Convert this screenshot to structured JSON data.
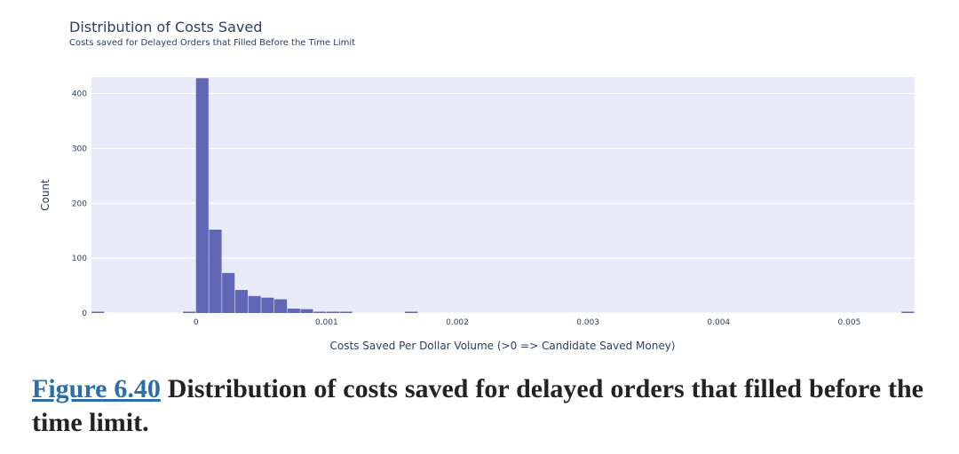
{
  "chart_data": {
    "type": "bar",
    "title": "Distribution of Costs Saved",
    "subtitle": "Costs saved for Delayed Orders that Filled Before the Time Limit",
    "xlabel": "Costs Saved Per Dollar Volume (>0 => Candidate Saved Money)",
    "ylabel": "Count",
    "xlim": [
      -0.0008,
      0.0055
    ],
    "ylim": [
      0,
      430
    ],
    "x_ticks": [
      {
        "value": 0,
        "label": "0"
      },
      {
        "value": 0.001,
        "label": "0.001"
      },
      {
        "value": 0.002,
        "label": "0.002"
      },
      {
        "value": 0.003,
        "label": "0.003"
      },
      {
        "value": 0.004,
        "label": "0.004"
      },
      {
        "value": 0.005,
        "label": "0.005"
      }
    ],
    "y_ticks": [
      {
        "value": 0,
        "label": "0"
      },
      {
        "value": 100,
        "label": "100"
      },
      {
        "value": 200,
        "label": "200"
      },
      {
        "value": 300,
        "label": "300"
      },
      {
        "value": 400,
        "label": "400"
      }
    ],
    "grid": true,
    "bin_width": 0.0001,
    "bins": [
      {
        "x0": -0.0008,
        "count": 1
      },
      {
        "x0": -0.0001,
        "count": 1
      },
      {
        "x0": 0.0,
        "count": 428
      },
      {
        "x0": 0.0001,
        "count": 152
      },
      {
        "x0": 0.0002,
        "count": 73
      },
      {
        "x0": 0.0003,
        "count": 42
      },
      {
        "x0": 0.0004,
        "count": 31
      },
      {
        "x0": 0.0005,
        "count": 28
      },
      {
        "x0": 0.0006,
        "count": 25
      },
      {
        "x0": 0.0007,
        "count": 8
      },
      {
        "x0": 0.0008,
        "count": 7
      },
      {
        "x0": 0.0009,
        "count": 2
      },
      {
        "x0": 0.001,
        "count": 2
      },
      {
        "x0": 0.0011,
        "count": 1
      },
      {
        "x0": 0.0016,
        "count": 1
      },
      {
        "x0": 0.0054,
        "count": 1
      }
    ],
    "colors": {
      "bar": "#6166b5",
      "plot_bg": "#e8ebf7",
      "grid": "#ffffff",
      "text": "#2a3f5f"
    }
  },
  "caption": {
    "figure_ref": "Figure 6.40",
    "text": " Distribution of costs saved for delayed orders that filled before the time limit."
  }
}
